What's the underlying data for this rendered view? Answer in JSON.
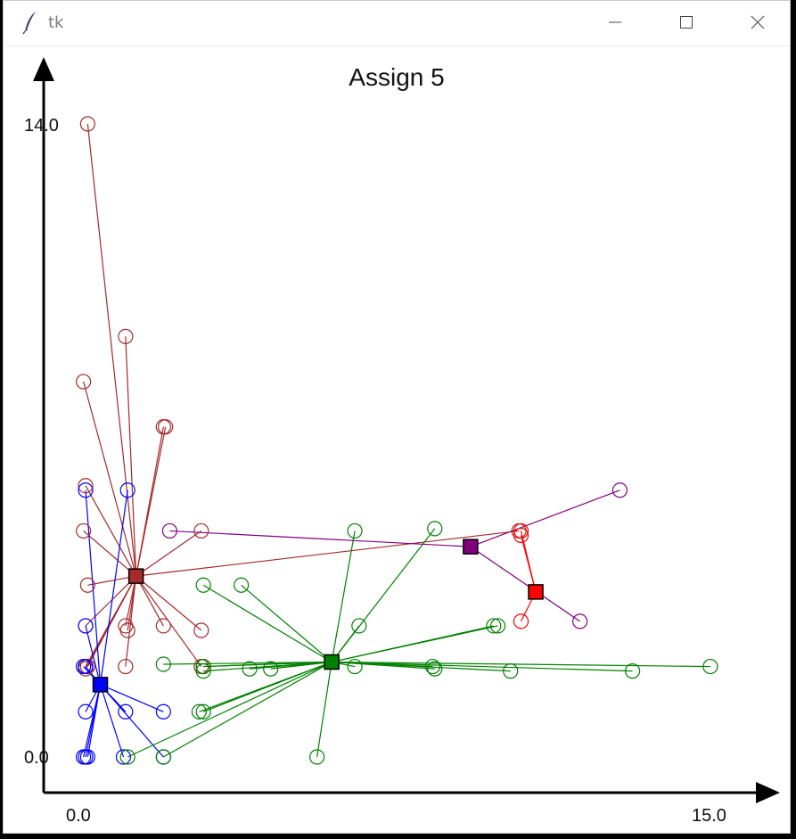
{
  "window": {
    "title": "tk"
  },
  "chart_data": {
    "type": "scatter",
    "title": "Assign 5",
    "xlim": [
      0.0,
      15.0
    ],
    "ylim": [
      0.0,
      14.0
    ],
    "x_tick_labels": [
      "0.0",
      "15.0"
    ],
    "y_tick_labels": [
      "0.0",
      "14.0"
    ],
    "clusters": [
      {
        "color": "#a52a2a",
        "centroid": [
          1.2,
          4.0
        ],
        "points": [
          [
            0.05,
            14.0
          ],
          [
            0.95,
            9.3
          ],
          [
            -0.05,
            8.3
          ],
          [
            1.85,
            7.3
          ],
          [
            1.9,
            7.3
          ],
          [
            0.0,
            6.0
          ],
          [
            -0.05,
            5.0
          ],
          [
            0.05,
            3.8
          ],
          [
            0.0,
            2.9
          ],
          [
            0.0,
            2.0
          ],
          [
            0.0,
            1.95
          ],
          [
            0.05,
            2.0
          ],
          [
            0.95,
            2.9
          ],
          [
            1.0,
            2.8
          ],
          [
            1.85,
            2.9
          ],
          [
            2.75,
            5.0
          ],
          [
            2.75,
            2.8
          ],
          [
            2.75,
            2.0
          ],
          [
            0.95,
            2.0
          ],
          [
            10.3,
            5.0
          ]
        ]
      },
      {
        "color": "#0000ff",
        "centroid": [
          0.35,
          1.6
        ],
        "points": [
          [
            0.0,
            5.9
          ],
          [
            1.0,
            5.9
          ],
          [
            0.0,
            2.9
          ],
          [
            0.0,
            2.0
          ],
          [
            -0.05,
            2.0
          ],
          [
            0.0,
            1.0
          ],
          [
            0.95,
            1.0
          ],
          [
            1.85,
            1.0
          ],
          [
            0.0,
            0.0
          ],
          [
            0.05,
            0.0
          ],
          [
            -0.05,
            0.0
          ],
          [
            0.9,
            0.0
          ],
          [
            1.85,
            0.0
          ]
        ]
      },
      {
        "color": "#008000",
        "centroid": [
          5.85,
          2.1
        ],
        "points": [
          [
            6.4,
            5.0
          ],
          [
            8.3,
            5.05
          ],
          [
            3.7,
            3.8
          ],
          [
            2.8,
            3.8
          ],
          [
            6.5,
            2.9
          ],
          [
            9.7,
            2.9
          ],
          [
            9.8,
            2.9
          ],
          [
            1.85,
            2.05
          ],
          [
            2.8,
            2.0
          ],
          [
            3.9,
            1.95
          ],
          [
            4.4,
            1.95
          ],
          [
            6.4,
            2.0
          ],
          [
            8.25,
            2.0
          ],
          [
            8.3,
            1.95
          ],
          [
            10.1,
            1.9
          ],
          [
            13.0,
            1.9
          ],
          [
            14.85,
            2.0
          ],
          [
            2.8,
            1.0
          ],
          [
            2.7,
            1.0
          ],
          [
            1.0,
            0.0
          ],
          [
            1.85,
            0.0
          ],
          [
            5.5,
            0.0
          ],
          [
            2.8,
            2.0
          ],
          [
            2.8,
            1.9
          ]
        ]
      },
      {
        "color": "#800080",
        "centroid": [
          9.15,
          4.65
        ],
        "points": [
          [
            12.7,
            5.9
          ],
          [
            2.0,
            5.0
          ],
          [
            11.75,
            3.0
          ]
        ]
      },
      {
        "color": "#ff0000",
        "centroid": [
          10.7,
          3.65
        ],
        "points": [
          [
            10.35,
            5.0
          ],
          [
            10.35,
            4.9
          ],
          [
            10.35,
            3.0
          ]
        ]
      }
    ]
  }
}
